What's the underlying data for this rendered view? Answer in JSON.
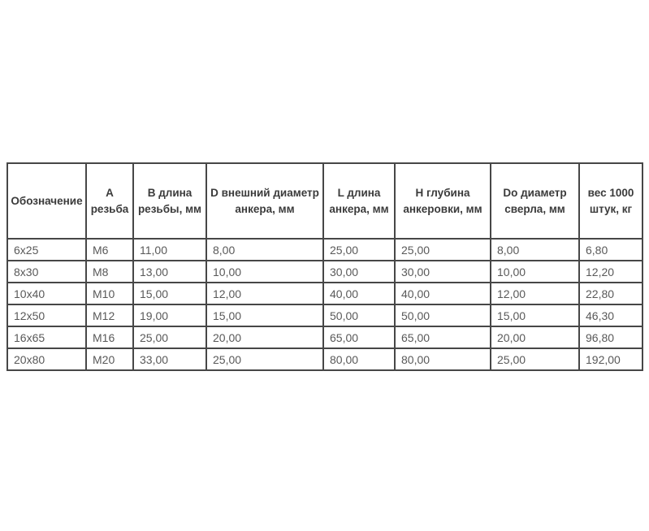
{
  "colors": {
    "border": "#474747",
    "header_text": "#3b3b3b",
    "cell_text": "#595959",
    "background": "#ffffff"
  },
  "table": {
    "columns": [
      {
        "label": "Обозначение"
      },
      {
        "label": "А\nрезьба"
      },
      {
        "label": "В длина\nрезьбы, мм"
      },
      {
        "label": "D внешний диаметр\nанкера, мм"
      },
      {
        "label": "L длина\nанкера, мм"
      },
      {
        "label": "Н глубина\nанкеровки, мм"
      },
      {
        "label": "Do диаметр\nсверла, мм"
      },
      {
        "label": "вес 1000\nштук, кг"
      }
    ],
    "rows": [
      {
        "cells": [
          "6x25",
          "М6",
          "11,00",
          "8,00",
          "25,00",
          "25,00",
          "8,00",
          "6,80"
        ]
      },
      {
        "cells": [
          "8x30",
          "М8",
          "13,00",
          "10,00",
          "30,00",
          "30,00",
          "10,00",
          "12,20"
        ]
      },
      {
        "cells": [
          "10x40",
          "М10",
          "15,00",
          "12,00",
          "40,00",
          "40,00",
          "12,00",
          "22,80"
        ]
      },
      {
        "cells": [
          "12x50",
          "М12",
          "19,00",
          "15,00",
          "50,00",
          "50,00",
          "15,00",
          "46,30"
        ]
      },
      {
        "cells": [
          "16x65",
          "М16",
          "25,00",
          "20,00",
          "65,00",
          "65,00",
          "20,00",
          "96,80"
        ]
      },
      {
        "cells": [
          "20x80",
          "М20",
          "33,00",
          "25,00",
          "80,00",
          "80,00",
          "25,00",
          "192,00"
        ]
      }
    ]
  }
}
